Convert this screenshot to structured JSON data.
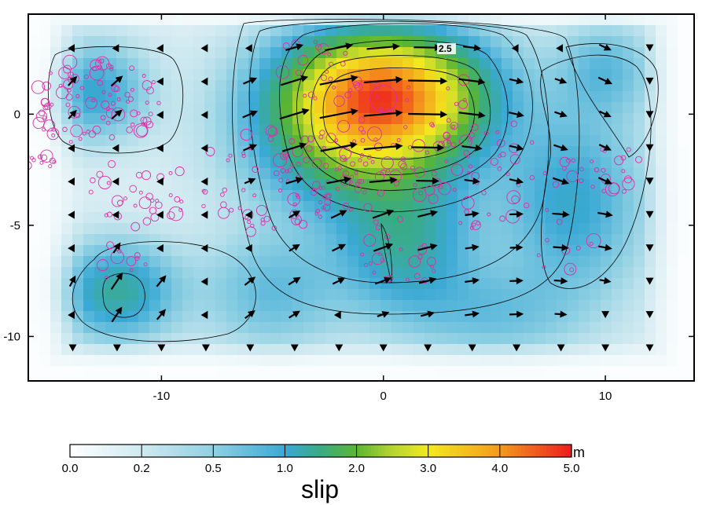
{
  "chart_data": {
    "type": "heatmap",
    "x_range": [
      -16,
      14
    ],
    "y_range": [
      -12,
      4.5
    ],
    "x_ticks": [
      -10,
      0,
      10
    ],
    "y_ticks": [
      0,
      -5,
      -10
    ],
    "x_tick_labels": [
      "-10",
      "0",
      "10"
    ],
    "y_tick_labels": [
      "0",
      "-5",
      "-10"
    ],
    "colorbar": {
      "title": "slip",
      "unit": "m",
      "ticks": [
        0.0,
        0.2,
        0.5,
        1.0,
        2.0,
        3.0,
        4.0,
        5.0
      ],
      "tick_labels": [
        "0.0",
        "0.2",
        "0.5",
        "1.0",
        "2.0",
        "3.0",
        "4.0",
        "5.0"
      ],
      "colors": [
        "#ffffff",
        "#c8e6ee",
        "#8fd0e4",
        "#3aa8d6",
        "#39a84a",
        "#d6e43a",
        "#fbe41a",
        "#f59a1c",
        "#ee1c1c"
      ]
    },
    "contour_label": "2.5",
    "slip_patches": [
      {
        "x": 0,
        "y": 1,
        "sx": 4.2,
        "sy": 2.6,
        "amp": 3.9
      },
      {
        "x": -1,
        "y": -1.5,
        "sx": 4.5,
        "sy": 3.0,
        "amp": 1.5
      },
      {
        "x": 1,
        "y": -6,
        "sx": 3.0,
        "sy": 3.0,
        "amp": 1.1
      },
      {
        "x": -13,
        "y": 1,
        "sx": 2.2,
        "sy": 2.0,
        "amp": 0.9
      },
      {
        "x": -12,
        "y": -8,
        "sx": 2.5,
        "sy": 2.0,
        "amp": 1.2
      },
      {
        "x": 8.5,
        "y": -4,
        "sx": 3.0,
        "sy": 4.0,
        "amp": 0.9
      },
      {
        "x": 10,
        "y": 2,
        "sx": 2.0,
        "sy": 2.0,
        "amp": 0.6
      },
      {
        "x": -5,
        "y": -8,
        "sx": 3.0,
        "sy": 2.5,
        "amp": 0.6
      },
      {
        "x": 5,
        "y": -9,
        "sx": 3.5,
        "sy": 2.0,
        "amp": 0.5
      }
    ],
    "aftershock_color": "#dd2ea4",
    "arrow_color": "#000000"
  }
}
